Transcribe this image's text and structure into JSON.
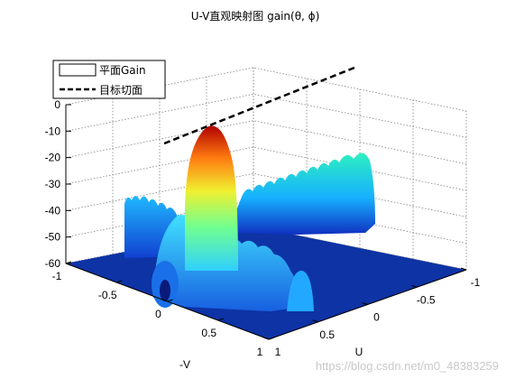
{
  "chart_data": {
    "type": "surface",
    "title": "U-V直观映射图 gain(θ, ϕ)",
    "xlabel": "U",
    "ylabel": "-V",
    "zlabel": "",
    "u_ticks": [
      "1",
      "0.5",
      "0",
      "-0.5",
      "-1"
    ],
    "v_ticks": [
      "-1",
      "-0.5",
      "0",
      "0.5",
      "1"
    ],
    "z_ticks": [
      "0",
      "-10",
      "-20",
      "-30",
      "-40",
      "-50",
      "-60"
    ],
    "zlim": [
      -60,
      0
    ],
    "grid": true,
    "colormap": "jet",
    "legend_position": "top-left",
    "legend": [
      {
        "label": "平面Gain",
        "style": "surface"
      },
      {
        "label": "目标切面",
        "style": "dashed-line"
      }
    ],
    "series": [
      {
        "name": "平面Gain",
        "kind": "surface",
        "main_lobe_peak_db": -8.5,
        "ridge_along_u_db": -22,
        "ridge_along_v_db": -36,
        "floor_db": -60
      },
      {
        "name": "目标切面",
        "kind": "line",
        "z_db": -2
      }
    ]
  },
  "watermark": "https://blog.csdn.net/m0_48383259",
  "colors": {
    "background": "#ffffff",
    "axis": "#000000",
    "grid": "#7f7f7f",
    "floor": "#0d33a5"
  }
}
